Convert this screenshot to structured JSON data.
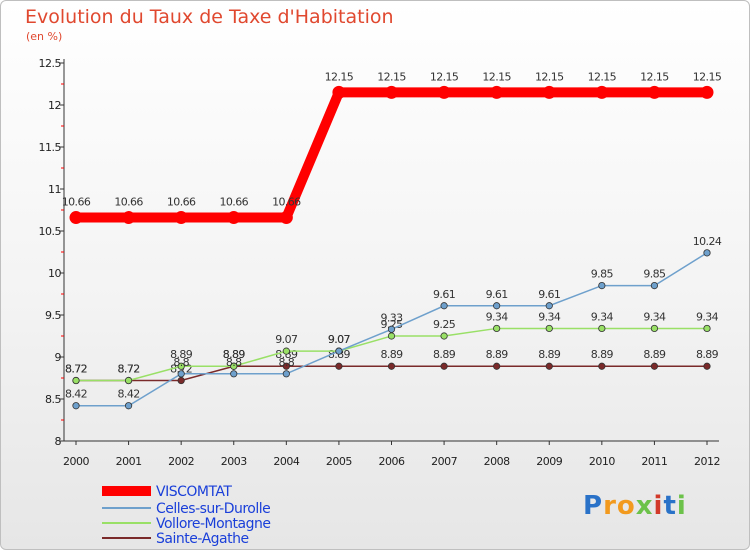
{
  "title": "Evolution du Taux de Taxe d'Habitation",
  "subtitle": "(en %)",
  "logo": "Proxiti",
  "chart_data": {
    "type": "line",
    "title": "Evolution du Taux de Taxe d'Habitation",
    "ylabel": "(en %)",
    "xlabel": "",
    "ylim": [
      8,
      12.5
    ],
    "yticks": [
      "8",
      "8.5",
      "9",
      "9.5",
      "10",
      "10.5",
      "11",
      "11.5",
      "12",
      "12.5"
    ],
    "categories": [
      "2000",
      "2001",
      "2002",
      "2003",
      "2004",
      "2005",
      "2006",
      "2007",
      "2008",
      "2009",
      "2010",
      "2011",
      "2012"
    ],
    "legend_position": "bottom-left",
    "series": [
      {
        "name": "VISCOMTAT",
        "color": "#ff0000",
        "values": [
          10.66,
          10.66,
          10.66,
          10.66,
          10.66,
          12.15,
          12.15,
          12.15,
          12.15,
          12.15,
          12.15,
          12.15,
          12.15
        ],
        "labels": [
          "10.66",
          "10.66",
          "10.66",
          "10.66",
          "10.66",
          "12.15",
          "12.15",
          "12.15",
          "12.15",
          "12.15",
          "12.15",
          "12.15",
          "12.15"
        ]
      },
      {
        "name": "Celles-sur-Durolle",
        "color": "#6ea0cc",
        "values": [
          8.42,
          8.42,
          8.8,
          8.8,
          8.8,
          9.07,
          9.33,
          9.61,
          9.61,
          9.61,
          9.85,
          9.85,
          10.24
        ],
        "labels": [
          "8.42",
          "8.42",
          "8.8",
          "8.8",
          "8.8",
          "9.07",
          "9.33",
          "9.61",
          "9.61",
          "9.61",
          "9.85",
          "9.85",
          "10.24"
        ]
      },
      {
        "name": "Vollore-Montagne",
        "color": "#99e066",
        "values": [
          8.72,
          8.72,
          8.89,
          8.89,
          9.07,
          9.07,
          9.25,
          9.25,
          9.34,
          9.34,
          9.34,
          9.34,
          9.34
        ],
        "labels": [
          "8.72",
          "8.72",
          "8.89",
          "8.89",
          "9.07",
          "9.07",
          "9.25",
          "9.25",
          "9.34",
          "9.34",
          "9.34",
          "9.34",
          "9.34"
        ]
      },
      {
        "name": "Sainte-Agathe",
        "color": "#7a2a2a",
        "values": [
          8.72,
          8.72,
          8.72,
          8.89,
          8.89,
          8.89,
          8.89,
          8.89,
          8.89,
          8.89,
          8.89,
          8.89,
          8.89
        ],
        "labels": [
          "8.72",
          "8.72",
          "8.72",
          "8.89",
          "8.89",
          "8.89",
          "8.89",
          "8.89",
          "8.89",
          "8.89",
          "8.89",
          "8.89",
          "8.89"
        ]
      }
    ]
  }
}
